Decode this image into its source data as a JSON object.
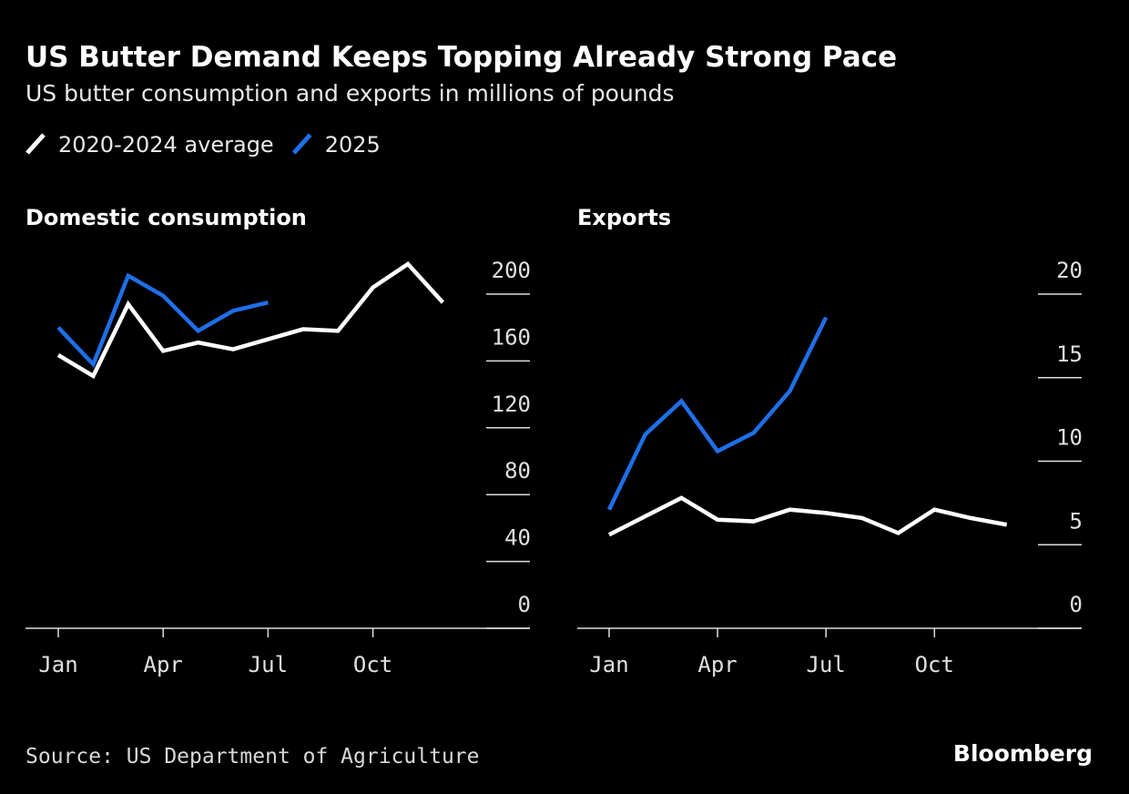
{
  "title": "US Butter Demand Keeps Topping Already Strong Pace",
  "subtitle": "US butter consumption and exports in millions of pounds",
  "source": "Source: US Department of Agriculture",
  "brand": "Bloomberg",
  "chart_data": [
    {
      "type": "line",
      "title": "Domestic consumption",
      "categories": [
        "Jan",
        null,
        null,
        "Apr",
        null,
        null,
        "Jul",
        null,
        null,
        "Oct",
        null,
        null
      ],
      "series": [
        {
          "name": "2020-2024 average",
          "color": "#ffffff",
          "values": [
            163.5,
            151,
            194,
            166,
            171,
            167,
            173,
            179,
            178,
            204,
            218,
            195
          ]
        },
        {
          "name": "2025",
          "color": "#1f6fe8",
          "values": [
            180,
            158,
            211,
            199,
            178,
            190,
            195,
            null,
            null,
            null,
            null,
            null
          ]
        }
      ],
      "ylim": [
        0,
        200
      ],
      "yticks": [
        0,
        40,
        80,
        120,
        160,
        200
      ]
    },
    {
      "type": "line",
      "title": "Exports",
      "categories": [
        "Jan",
        null,
        null,
        "Apr",
        null,
        null,
        "Jul",
        null,
        null,
        "Oct",
        null,
        null
      ],
      "series": [
        {
          "name": "2020-2024 average",
          "color": "#ffffff",
          "values": [
            5.6,
            6.7,
            7.8,
            6.5,
            6.4,
            7.1,
            6.9,
            6.6,
            5.7,
            7.1,
            6.6,
            6.2
          ]
        },
        {
          "name": "2025",
          "color": "#1f6fe8",
          "values": [
            7.1,
            11.6,
            13.6,
            10.6,
            11.7,
            14.2,
            18.6,
            null,
            null,
            null,
            null,
            null
          ]
        }
      ],
      "ylim": [
        0,
        20
      ],
      "yticks": [
        0,
        5,
        10,
        15,
        20
      ]
    }
  ]
}
